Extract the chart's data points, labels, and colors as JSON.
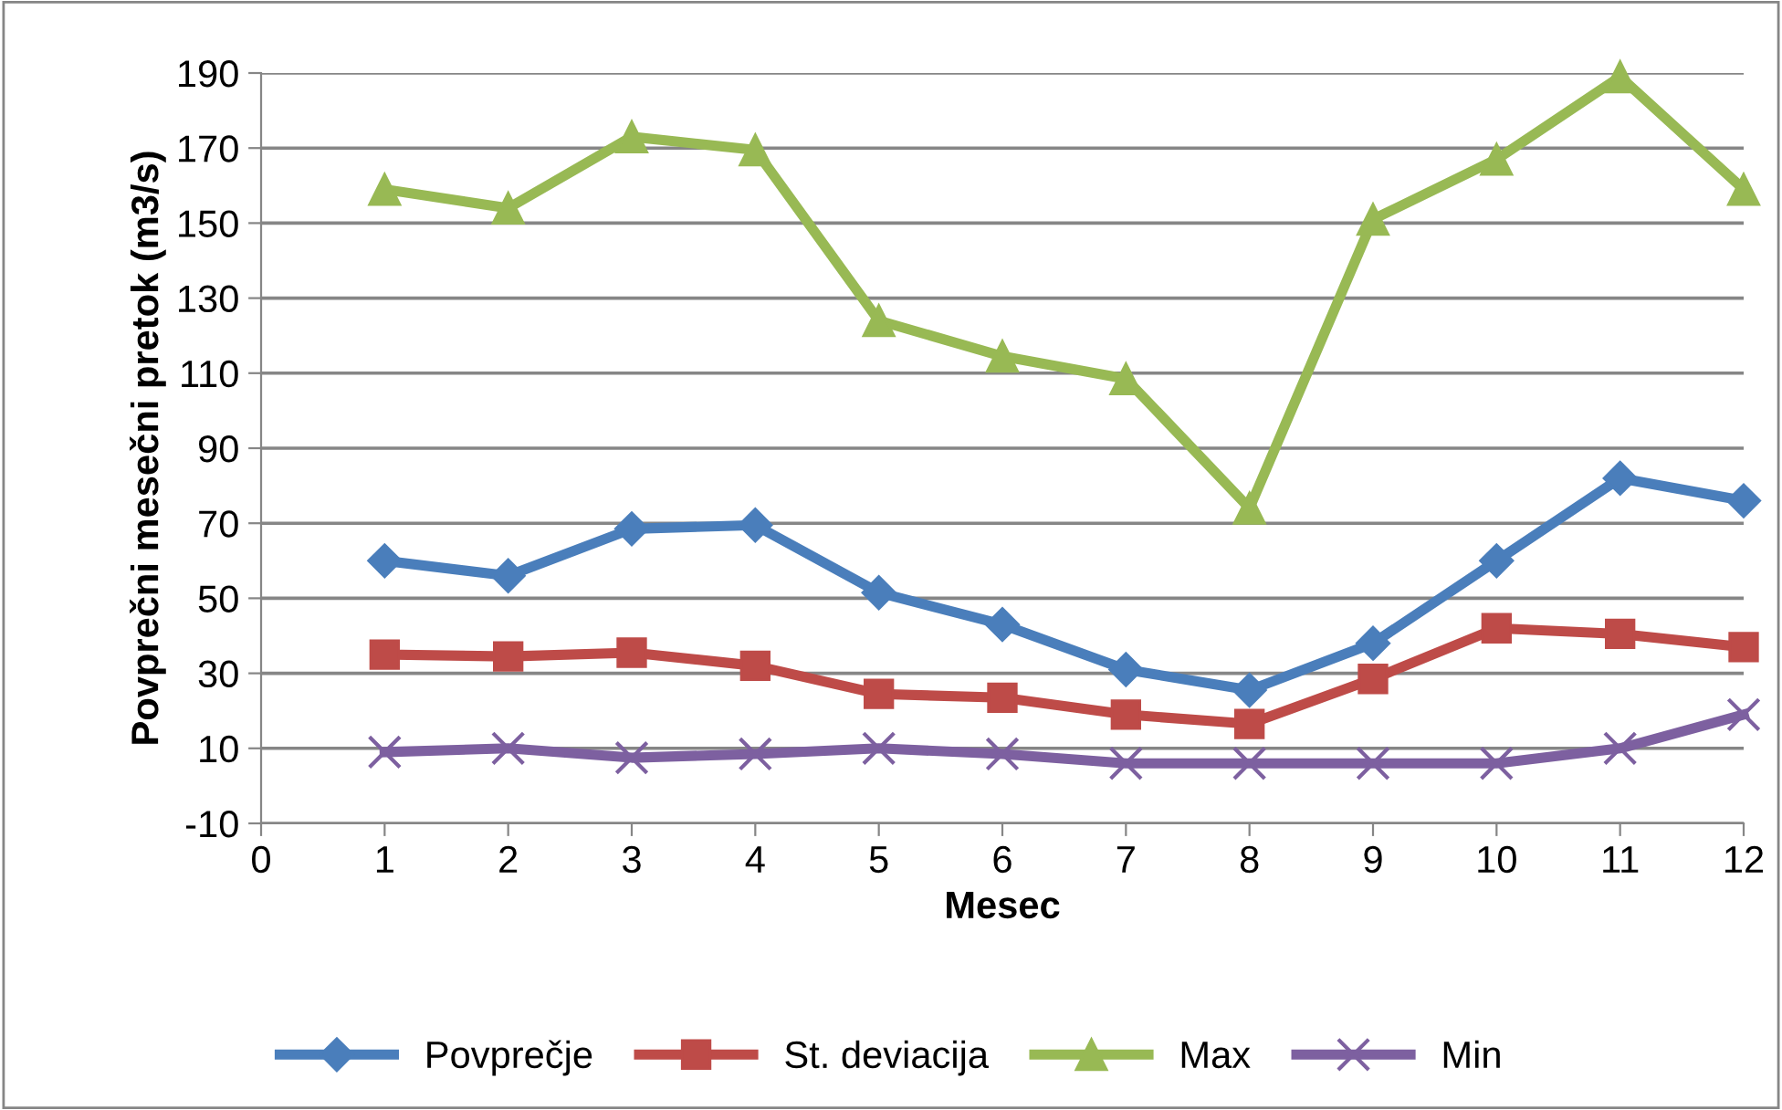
{
  "chart_data": {
    "type": "line",
    "xlabel": "Mesec",
    "ylabel": "Povprečni mesečni pretok (m3/s)",
    "x": [
      1,
      2,
      3,
      4,
      5,
      6,
      7,
      8,
      9,
      10,
      11,
      12
    ],
    "series": [
      {
        "name": "Povprečje",
        "color": "#4a7ebb",
        "marker": "diamond",
        "values": [
          60,
          56,
          68.5,
          69.5,
          51.5,
          43,
          31,
          25.5,
          38,
          60,
          82,
          76
        ]
      },
      {
        "name": "St. deviacija",
        "color": "#be4b48",
        "marker": "square",
        "values": [
          35,
          34.5,
          35.5,
          32,
          24.5,
          23.5,
          19,
          16.5,
          28.5,
          42,
          40.5,
          37
        ]
      },
      {
        "name": "Max",
        "color": "#98b954",
        "marker": "triangle",
        "values": [
          159,
          154,
          173,
          169.5,
          124,
          114.5,
          108.5,
          74,
          151,
          167,
          189,
          159
        ]
      },
      {
        "name": "Min",
        "color": "#7d60a0",
        "marker": "cross",
        "values": [
          9,
          10,
          7.5,
          8.5,
          10,
          8.5,
          6,
          6,
          6,
          6,
          10,
          19
        ]
      }
    ],
    "xlim": [
      0,
      12
    ],
    "xticks": [
      0,
      1,
      2,
      3,
      4,
      5,
      6,
      7,
      8,
      9,
      10,
      11,
      12
    ],
    "ylim": [
      -10,
      190
    ],
    "yticks": [
      -10,
      10,
      30,
      50,
      70,
      90,
      110,
      130,
      150,
      170,
      190
    ],
    "grid": "y",
    "legend": "bottom",
    "line_style": "solid"
  }
}
